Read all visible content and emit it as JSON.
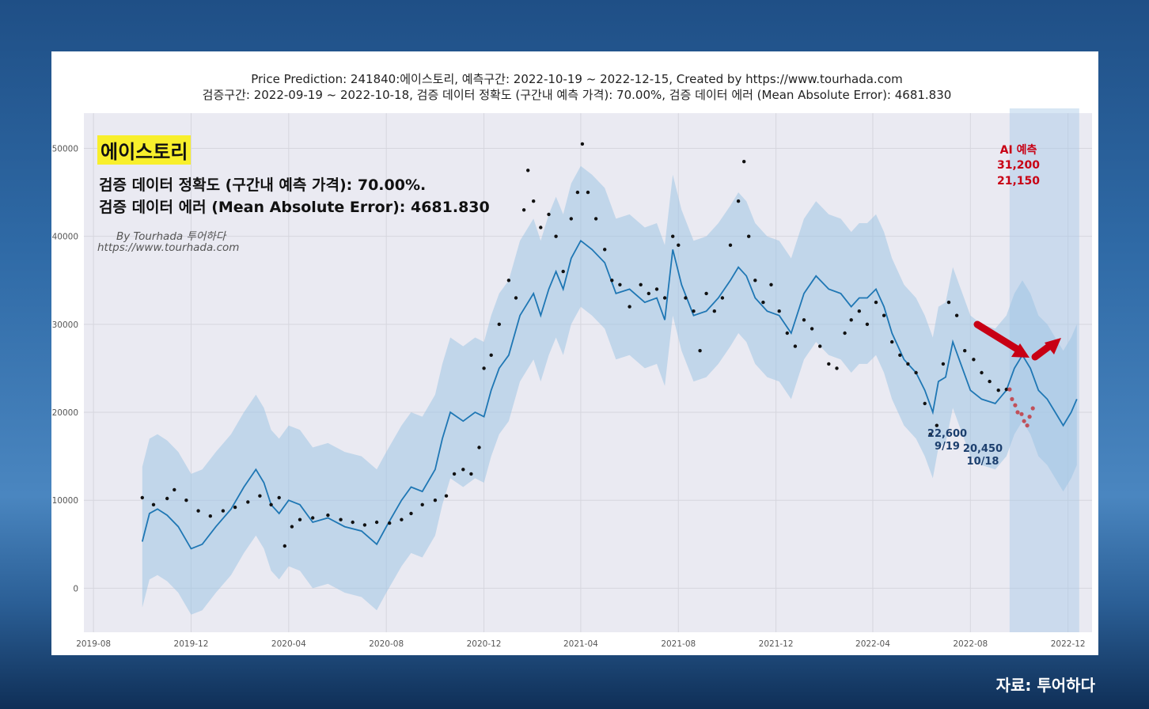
{
  "chart_data": {
    "type": "line",
    "title_lines": [
      "Price Prediction: 241840:에이스토리, 예측구간: 2022-10-19 ~ 2022-12-15, Created by https://www.tourhada.com",
      "검증구간: 2022-09-19 ~ 2022-10-18, 검증 데이터 정확도 (구간내 예측 가격): 70.00%, 검증 데이터 에러 (Mean Absolute Error): 4681.830"
    ],
    "x_ticks": [
      "2019-08",
      "2019-12",
      "2020-04",
      "2020-08",
      "2020-12",
      "2021-04",
      "2021-08",
      "2021-12",
      "2022-04",
      "2022-08",
      "2022-12"
    ],
    "y_ticks": [
      0,
      10000,
      20000,
      30000,
      40000,
      50000
    ],
    "xlim": [
      "2019-07-20",
      "2022-12-31"
    ],
    "ylim": [
      -5000,
      54000
    ],
    "grid": true,
    "series": [
      {
        "role": "forecast",
        "color": "#1f77b4",
        "points": [
          [
            "2019-10-01",
            5300
          ],
          [
            "2019-10-10",
            8500
          ],
          [
            "2019-10-20",
            9000
          ],
          [
            "2019-11-01",
            8300
          ],
          [
            "2019-11-15",
            7000
          ],
          [
            "2019-12-01",
            4500
          ],
          [
            "2019-12-15",
            5000
          ],
          [
            "2020-01-01",
            7000
          ],
          [
            "2020-01-20",
            9000
          ],
          [
            "2020-02-05",
            11500
          ],
          [
            "2020-02-20",
            13500
          ],
          [
            "2020-03-01",
            12000
          ],
          [
            "2020-03-10",
            9500
          ],
          [
            "2020-03-20",
            8500
          ],
          [
            "2020-04-01",
            10000
          ],
          [
            "2020-04-15",
            9500
          ],
          [
            "2020-05-01",
            7500
          ],
          [
            "2020-05-20",
            8000
          ],
          [
            "2020-06-10",
            7000
          ],
          [
            "2020-07-01",
            6500
          ],
          [
            "2020-07-20",
            5000
          ],
          [
            "2020-08-01",
            7000
          ],
          [
            "2020-08-20",
            10000
          ],
          [
            "2020-09-01",
            11500
          ],
          [
            "2020-09-15",
            11000
          ],
          [
            "2020-10-01",
            13500
          ],
          [
            "2020-10-10",
            17000
          ],
          [
            "2020-10-20",
            20000
          ],
          [
            "2020-11-05",
            19000
          ],
          [
            "2020-11-20",
            20000
          ],
          [
            "2020-12-01",
            19500
          ],
          [
            "2020-12-10",
            22500
          ],
          [
            "2020-12-20",
            25000
          ],
          [
            "2021-01-01",
            26500
          ],
          [
            "2021-01-15",
            31000
          ],
          [
            "2021-02-01",
            33500
          ],
          [
            "2021-02-10",
            31000
          ],
          [
            "2021-02-20",
            34000
          ],
          [
            "2021-03-01",
            36000
          ],
          [
            "2021-03-10",
            34000
          ],
          [
            "2021-03-20",
            37500
          ],
          [
            "2021-04-01",
            39500
          ],
          [
            "2021-04-15",
            38500
          ],
          [
            "2021-05-01",
            37000
          ],
          [
            "2021-05-15",
            33500
          ],
          [
            "2021-06-01",
            34000
          ],
          [
            "2021-06-20",
            32500
          ],
          [
            "2021-07-05",
            33000
          ],
          [
            "2021-07-15",
            30500
          ],
          [
            "2021-07-25",
            38500
          ],
          [
            "2021-08-05",
            34500
          ],
          [
            "2021-08-20",
            31000
          ],
          [
            "2021-09-05",
            31500
          ],
          [
            "2021-09-20",
            33000
          ],
          [
            "2021-10-05",
            35000
          ],
          [
            "2021-10-15",
            36500
          ],
          [
            "2021-10-25",
            35500
          ],
          [
            "2021-11-05",
            33000
          ],
          [
            "2021-11-20",
            31500
          ],
          [
            "2021-12-05",
            31000
          ],
          [
            "2021-12-20",
            29000
          ],
          [
            "2022-01-05",
            33500
          ],
          [
            "2022-01-20",
            35500
          ],
          [
            "2022-02-05",
            34000
          ],
          [
            "2022-02-20",
            33500
          ],
          [
            "2022-03-05",
            32000
          ],
          [
            "2022-03-15",
            33000
          ],
          [
            "2022-03-25",
            33000
          ],
          [
            "2022-04-05",
            34000
          ],
          [
            "2022-04-15",
            32000
          ],
          [
            "2022-04-25",
            29000
          ],
          [
            "2022-05-10",
            26000
          ],
          [
            "2022-05-25",
            24500
          ],
          [
            "2022-06-05",
            22500
          ],
          [
            "2022-06-15",
            20000
          ],
          [
            "2022-06-22",
            23500
          ],
          [
            "2022-07-01",
            24000
          ],
          [
            "2022-07-10",
            28000
          ],
          [
            "2022-07-20",
            25500
          ],
          [
            "2022-08-01",
            22500
          ],
          [
            "2022-08-15",
            21500
          ],
          [
            "2022-09-01",
            21000
          ],
          [
            "2022-09-15",
            22500
          ],
          [
            "2022-09-25",
            25000
          ],
          [
            "2022-10-05",
            26500
          ],
          [
            "2022-10-15",
            25000
          ],
          [
            "2022-10-25",
            22500
          ],
          [
            "2022-11-05",
            21500
          ],
          [
            "2022-11-15",
            20000
          ],
          [
            "2022-11-25",
            18500
          ],
          [
            "2022-12-05",
            20000
          ],
          [
            "2022-12-12",
            21500
          ]
        ]
      },
      {
        "role": "uncertainty",
        "color": "#9ec4e4",
        "upper_offset": 8500,
        "lower_offset": 7500
      },
      {
        "role": "actual",
        "color": "#111111",
        "points": [
          [
            "2019-10-01",
            10300
          ],
          [
            "2019-10-15",
            9500
          ],
          [
            "2019-11-01",
            10200
          ],
          [
            "2019-11-10",
            11200
          ],
          [
            "2019-11-25",
            10000
          ],
          [
            "2019-12-10",
            8800
          ],
          [
            "2019-12-25",
            8200
          ],
          [
            "2020-01-10",
            8800
          ],
          [
            "2020-01-25",
            9200
          ],
          [
            "2020-02-10",
            9800
          ],
          [
            "2020-02-25",
            10500
          ],
          [
            "2020-03-10",
            9500
          ],
          [
            "2020-03-20",
            10300
          ],
          [
            "2020-03-27",
            4800
          ],
          [
            "2020-04-05",
            7000
          ],
          [
            "2020-04-15",
            7800
          ],
          [
            "2020-05-01",
            8000
          ],
          [
            "2020-05-20",
            8300
          ],
          [
            "2020-06-05",
            7800
          ],
          [
            "2020-06-20",
            7500
          ],
          [
            "2020-07-05",
            7200
          ],
          [
            "2020-07-20",
            7500
          ],
          [
            "2020-08-05",
            7400
          ],
          [
            "2020-08-20",
            7800
          ],
          [
            "2020-09-01",
            8500
          ],
          [
            "2020-09-15",
            9500
          ],
          [
            "2020-10-01",
            10000
          ],
          [
            "2020-10-15",
            10500
          ],
          [
            "2020-10-25",
            13000
          ],
          [
            "2020-11-05",
            13500
          ],
          [
            "2020-11-15",
            13000
          ],
          [
            "2020-11-25",
            16000
          ],
          [
            "2020-12-01",
            25000
          ],
          [
            "2020-12-10",
            26500
          ],
          [
            "2020-12-20",
            30000
          ],
          [
            "2021-01-01",
            35000
          ],
          [
            "2021-01-10",
            33000
          ],
          [
            "2021-01-20",
            43000
          ],
          [
            "2021-01-25",
            47500
          ],
          [
            "2021-02-01",
            44000
          ],
          [
            "2021-02-10",
            41000
          ],
          [
            "2021-02-20",
            42500
          ],
          [
            "2021-03-01",
            40000
          ],
          [
            "2021-03-10",
            36000
          ],
          [
            "2021-03-20",
            42000
          ],
          [
            "2021-03-28",
            45000
          ],
          [
            "2021-04-03",
            50500
          ],
          [
            "2021-04-10",
            45000
          ],
          [
            "2021-04-20",
            42000
          ],
          [
            "2021-05-01",
            38500
          ],
          [
            "2021-05-10",
            35000
          ],
          [
            "2021-05-20",
            34500
          ],
          [
            "2021-06-01",
            32000
          ],
          [
            "2021-06-15",
            34500
          ],
          [
            "2021-06-25",
            33500
          ],
          [
            "2021-07-05",
            34000
          ],
          [
            "2021-07-15",
            33000
          ],
          [
            "2021-07-25",
            40000
          ],
          [
            "2021-08-01",
            39000
          ],
          [
            "2021-08-10",
            33000
          ],
          [
            "2021-08-20",
            31500
          ],
          [
            "2021-08-28",
            27000
          ],
          [
            "2021-09-05",
            33500
          ],
          [
            "2021-09-15",
            31500
          ],
          [
            "2021-09-25",
            33000
          ],
          [
            "2021-10-05",
            39000
          ],
          [
            "2021-10-15",
            44000
          ],
          [
            "2021-10-22",
            48500
          ],
          [
            "2021-10-28",
            40000
          ],
          [
            "2021-11-05",
            35000
          ],
          [
            "2021-11-15",
            32500
          ],
          [
            "2021-11-25",
            34500
          ],
          [
            "2021-12-05",
            31500
          ],
          [
            "2021-12-15",
            29000
          ],
          [
            "2021-12-25",
            27500
          ],
          [
            "2022-01-05",
            30500
          ],
          [
            "2022-01-15",
            29500
          ],
          [
            "2022-01-25",
            27500
          ],
          [
            "2022-02-05",
            25500
          ],
          [
            "2022-02-15",
            25000
          ],
          [
            "2022-02-25",
            29000
          ],
          [
            "2022-03-05",
            30500
          ],
          [
            "2022-03-15",
            31500
          ],
          [
            "2022-03-25",
            30000
          ],
          [
            "2022-04-05",
            32500
          ],
          [
            "2022-04-15",
            31000
          ],
          [
            "2022-04-25",
            28000
          ],
          [
            "2022-05-05",
            26500
          ],
          [
            "2022-05-15",
            25500
          ],
          [
            "2022-05-25",
            24500
          ],
          [
            "2022-06-05",
            21000
          ],
          [
            "2022-06-12",
            17500
          ],
          [
            "2022-06-20",
            18500
          ],
          [
            "2022-06-28",
            25500
          ],
          [
            "2022-07-05",
            32500
          ],
          [
            "2022-07-15",
            31000
          ],
          [
            "2022-07-25",
            27000
          ],
          [
            "2022-08-05",
            26000
          ],
          [
            "2022-08-15",
            24500
          ],
          [
            "2022-08-25",
            23500
          ],
          [
            "2022-09-05",
            22500
          ],
          [
            "2022-09-15",
            22600
          ]
        ]
      },
      {
        "role": "validation-actual",
        "color": "#c0505a",
        "points": [
          [
            "2022-09-19",
            22600
          ],
          [
            "2022-09-22",
            21500
          ],
          [
            "2022-09-26",
            20800
          ],
          [
            "2022-09-29",
            20000
          ],
          [
            "2022-10-04",
            19800
          ],
          [
            "2022-10-07",
            19000
          ],
          [
            "2022-10-11",
            18500
          ],
          [
            "2022-10-14",
            19500
          ],
          [
            "2022-10-18",
            20450
          ]
        ]
      }
    ],
    "forecast_window": [
      "2022-09-19",
      "2022-12-15"
    ],
    "window_color": "#a7c7e7"
  },
  "annotations": {
    "stock_name": "에이스토리",
    "accuracy_line": "검증 데이터 정확도 (구간내 예측 가격): 70.00%.",
    "error_line": "검증 데이터 에러 (Mean Absolute Error): 4681.830",
    "by_line": "By Tourhada 투어하다",
    "url_line": "https://www.tourhada.com",
    "ai_label": "AI 예측",
    "ai_high": "31,200",
    "ai_low": "21,150",
    "val_start_price": "22,600",
    "val_start_date": "9/19",
    "val_end_price": "20,450",
    "val_end_date": "10/18"
  },
  "footer": {
    "source": "자료: 투어하다"
  },
  "colors": {
    "arrow": "#c80014",
    "highlight": "#f8ef2c"
  }
}
